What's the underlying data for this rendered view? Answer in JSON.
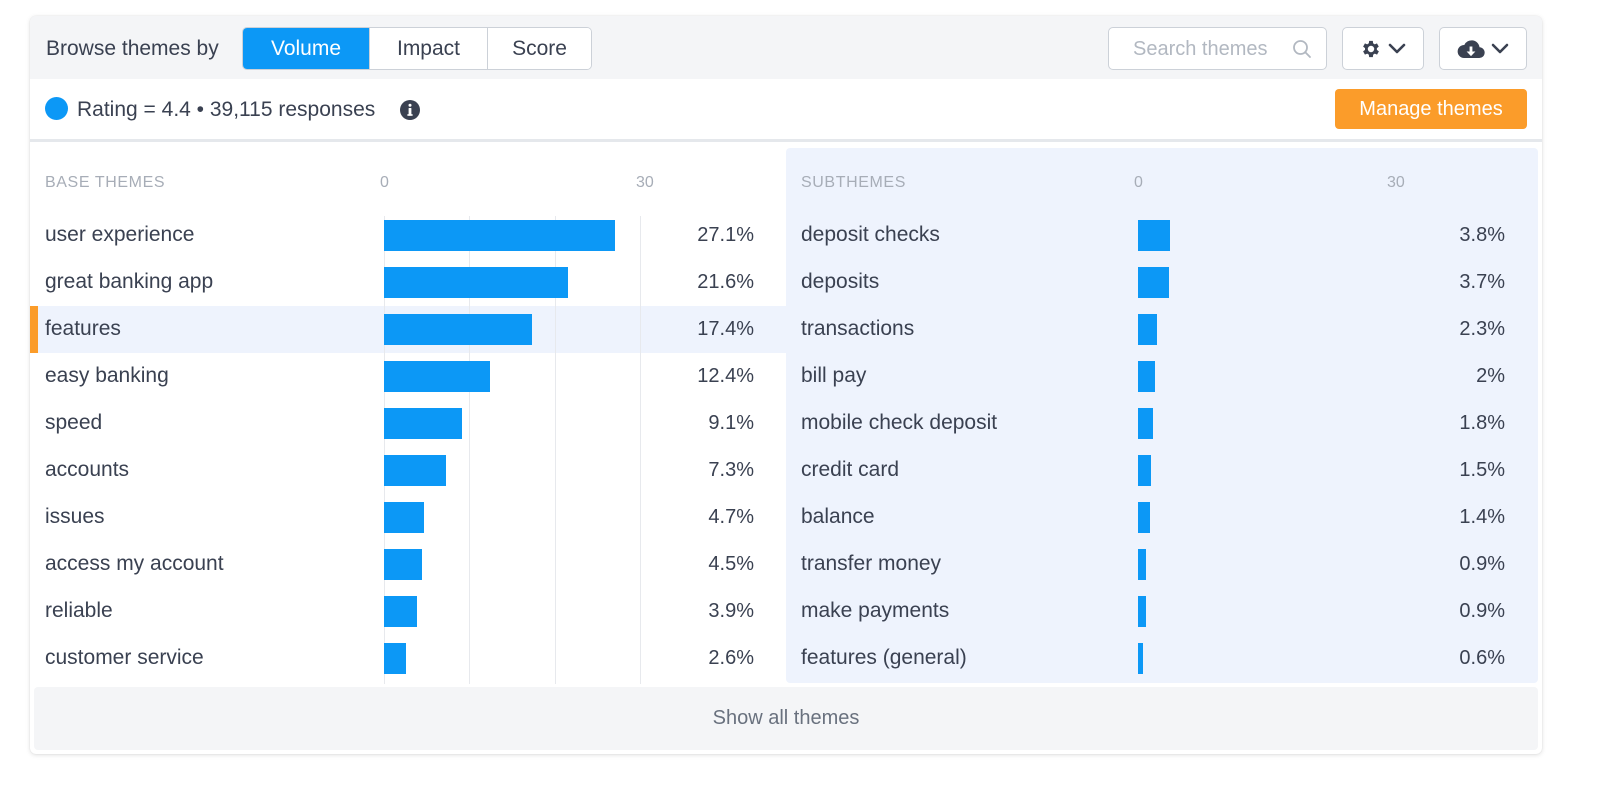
{
  "toolbar": {
    "browse_label": "Browse themes by",
    "modes": [
      "Volume",
      "Impact",
      "Score"
    ],
    "active_mode": "Volume",
    "search_placeholder": "Search themes",
    "settings_icon": "gear-icon",
    "download_icon": "cloud-download-icon"
  },
  "summary": {
    "text": "Rating = 4.4 • 39,115 responses",
    "dot_color": "#0c98f6",
    "manage_label": "Manage themes",
    "manage_color": "#fb9c2a"
  },
  "footer": {
    "show_all_label": "Show all themes"
  },
  "chart_data": [
    {
      "type": "bar",
      "orientation": "horizontal",
      "title": "BASE THEMES",
      "axis_ticks": [
        "0",
        "30"
      ],
      "xlim": [
        0,
        30
      ],
      "color": "#0c98f6",
      "selected": "features",
      "categories": [
        "user experience",
        "great banking app",
        "features",
        "easy banking",
        "speed",
        "accounts",
        "issues",
        "access my account",
        "reliable",
        "customer service"
      ],
      "values": [
        27.1,
        21.6,
        17.4,
        12.4,
        9.1,
        7.3,
        4.7,
        4.5,
        3.9,
        2.6
      ],
      "labels": [
        "27.1%",
        "21.6%",
        "17.4%",
        "12.4%",
        "9.1%",
        "7.3%",
        "4.7%",
        "4.5%",
        "3.9%",
        "2.6%"
      ]
    },
    {
      "type": "bar",
      "orientation": "horizontal",
      "title": "SUBTHEMES",
      "axis_ticks": [
        "0",
        "30"
      ],
      "xlim": [
        0,
        30
      ],
      "color": "#0c98f6",
      "categories": [
        "deposit checks",
        "deposits",
        "transactions",
        "bill pay",
        "mobile check deposit",
        "credit card",
        "balance",
        "transfer money",
        "make payments",
        "features (general)"
      ],
      "values": [
        3.8,
        3.7,
        2.3,
        2,
        1.8,
        1.5,
        1.4,
        0.9,
        0.9,
        0.6
      ],
      "labels": [
        "3.8%",
        "3.7%",
        "2.3%",
        "2%",
        "1.8%",
        "1.5%",
        "1.4%",
        "0.9%",
        "0.9%",
        "0.6%"
      ]
    }
  ]
}
